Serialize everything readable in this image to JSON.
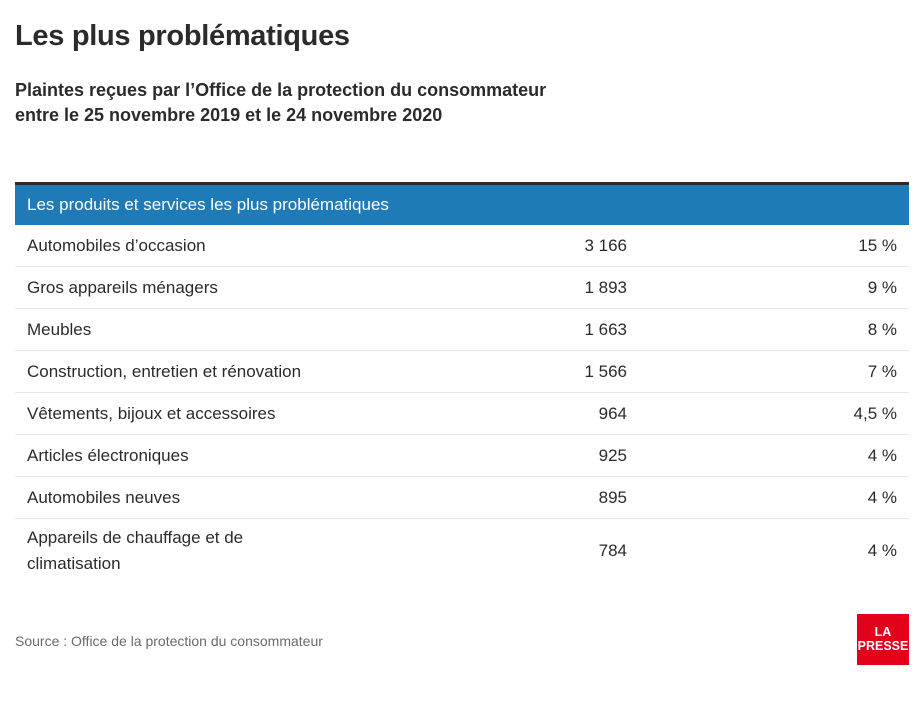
{
  "header": {
    "title": "Les plus problématiques",
    "subtitle_line1": "Plaintes reçues par l’Office de la protection du consommateur",
    "subtitle_line2": "entre le 25 novembre 2019 et le 24 novembre 2020"
  },
  "table": {
    "header_label": "Les produits et services les plus problématiques"
  },
  "chart_data": {
    "type": "table",
    "title": "Les plus problématiques",
    "columns": [
      "Les produits et services les plus problématiques",
      "",
      ""
    ],
    "rows": [
      {
        "label": "Automobiles d’occasion",
        "count": "3 166",
        "pct": "15 %"
      },
      {
        "label": "Gros appareils ménagers",
        "count": "1 893",
        "pct": "9 %"
      },
      {
        "label": "Meubles",
        "count": "1 663",
        "pct": "8 %"
      },
      {
        "label": "Construction, entretien et rénovation",
        "count": "1 566",
        "pct": "7 %"
      },
      {
        "label": "Vêtements, bijoux et accessoires",
        "count": "964",
        "pct": "4,5 %"
      },
      {
        "label": "Articles électroniques",
        "count": "925",
        "pct": "4 %"
      },
      {
        "label": "Automobiles neuves",
        "count": "895",
        "pct": "4 %"
      },
      {
        "label": "Appareils de chauffage et de climatisation",
        "count": "784",
        "pct": "4 %"
      }
    ]
  },
  "footer": {
    "source": "Source : Office de la protection du consommateur",
    "logo_line1": "LA",
    "logo_line2": "PRESSE"
  },
  "colors": {
    "header_blue": "#1f7ab8",
    "logo_red": "#e3001b",
    "text": "#2b2b2b"
  }
}
